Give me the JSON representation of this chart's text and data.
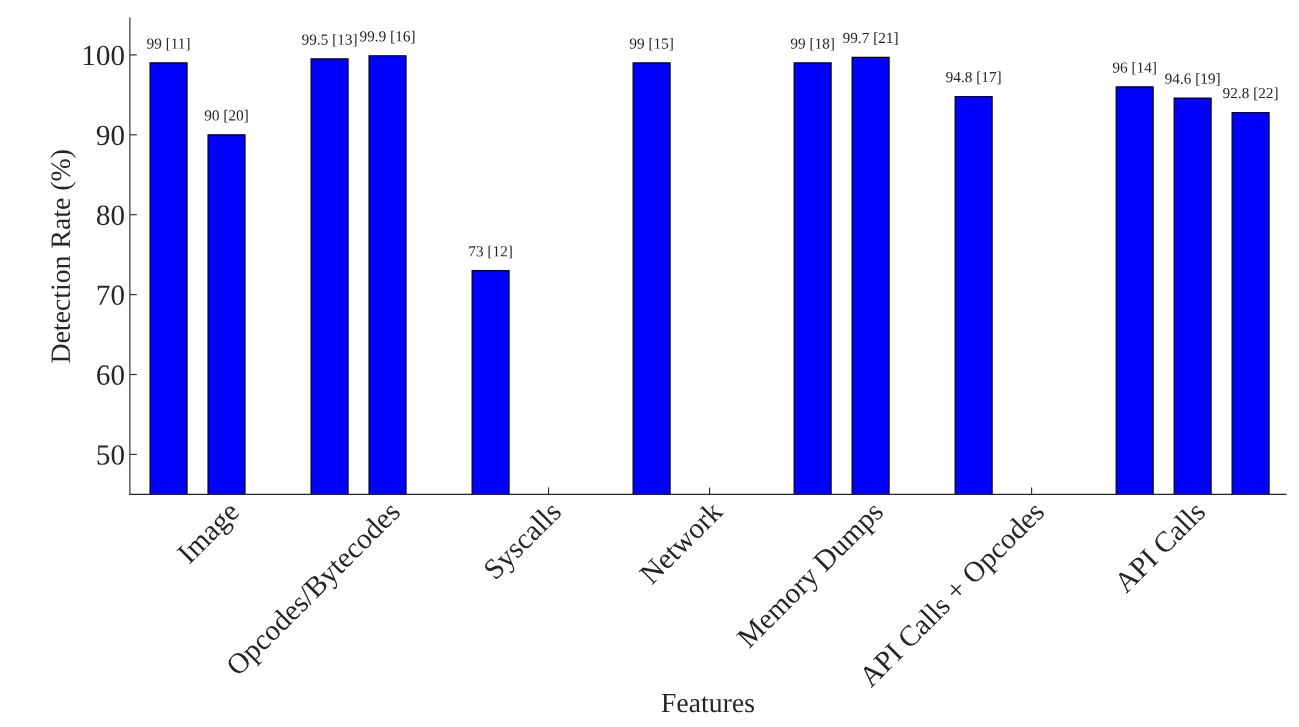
{
  "chart_data": {
    "type": "bar",
    "xlabel": "Features",
    "ylabel": "Detection Rate (%)",
    "categories": [
      "Image",
      "Opcodes/Bytecodes",
      "Syscalls",
      "Network",
      "Memory Dumps",
      "API Calls + Opcodes",
      "API Calls"
    ],
    "series": [
      {
        "color": "#0000ff",
        "values": [
          99,
          99.5,
          73,
          99,
          99,
          94.8,
          96
        ],
        "value_labels": [
          "99 [11]",
          "99.5 [13]",
          "73 [12]",
          "99 [15]",
          "99 [18]",
          "94.8 [17]",
          "96 [14]"
        ]
      },
      {
        "color": "#0000ff",
        "values": [
          90,
          99.9,
          null,
          null,
          99.7,
          null,
          94.6
        ],
        "value_labels": [
          "90 [20]",
          "99.9 [16]",
          null,
          null,
          "99.7 [21]",
          null,
          "94.6 [19]"
        ]
      },
      {
        "color": "#0000ff",
        "values": [
          null,
          null,
          null,
          null,
          null,
          null,
          92.8
        ],
        "value_labels": [
          null,
          null,
          null,
          null,
          null,
          null,
          "92.8 [22]"
        ]
      }
    ],
    "ylim": [
      45,
      104.6
    ],
    "yticks": [
      50,
      60,
      70,
      80,
      90,
      100
    ],
    "grid": false,
    "legend": false
  }
}
